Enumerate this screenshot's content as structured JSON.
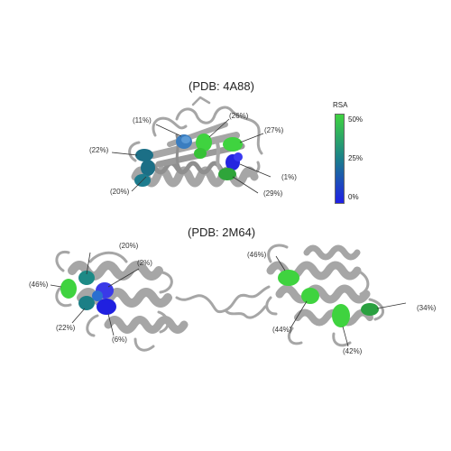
{
  "structure_1": {
    "title": "(PDB: 4A88)",
    "labels": [
      "(11%)",
      "(26%)",
      "(27%)",
      "(22%)",
      "(1%)",
      "(20%)",
      "(29%)"
    ]
  },
  "structure_2": {
    "title": "(PDB: 2M64)",
    "labels": [
      "(20%)",
      "(2%)",
      "(46%)",
      "(22%)",
      "(6%)",
      "(46%)",
      "(44%)",
      "(42%)",
      "(34%)"
    ]
  },
  "colorbar": {
    "title": "RSA",
    "ticks": [
      "50%",
      "25%",
      "0%"
    ],
    "colors": {
      "high": "#3fd33f",
      "mid": "#1b7f8a",
      "low": "#1f1fe6"
    }
  },
  "colors": {
    "ribbon": "#a9a9a9",
    "ribbon_dark": "#7d7d7d",
    "green": "#3fd33f",
    "teal": "#1b6f86",
    "blue": "#2020e0",
    "steel": "#3a78b8"
  }
}
